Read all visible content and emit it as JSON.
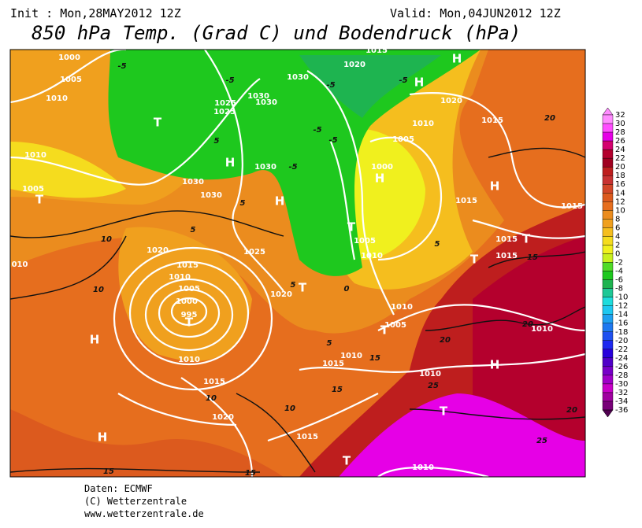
{
  "header": {
    "init": "Init : Mon,28MAY2012 12Z",
    "valid": "Valid: Mon,04JUN2012 12Z",
    "title": "850 hPa Temp. (Grad C) und Bodendruck (hPa)"
  },
  "colorbar": {
    "values": [
      32,
      30,
      28,
      26,
      24,
      22,
      20,
      18,
      16,
      14,
      12,
      10,
      8,
      6,
      4,
      2,
      0,
      -2,
      -4,
      -6,
      -8,
      -10,
      -12,
      -14,
      -16,
      -18,
      -20,
      -22,
      -24,
      -26,
      -28,
      -30,
      -32,
      -34,
      -36
    ],
    "colors": [
      "#ff8cff",
      "#ff4dff",
      "#e600e6",
      "#d4006e",
      "#b4002d",
      "#a00020",
      "#be1e1e",
      "#c83232",
      "#d24628",
      "#dc5a1e",
      "#e66e1e",
      "#eb8c1e",
      "#f0a01e",
      "#f5be1e",
      "#f5dc1e",
      "#f0f01e",
      "#c8f01e",
      "#50dc28",
      "#1ec81e",
      "#1eb450",
      "#1ec896",
      "#1edcdc",
      "#1ec8f0",
      "#1ea0f0",
      "#1e78f0",
      "#1e50f0",
      "#1e28f0",
      "#2800dc",
      "#5000c8",
      "#7800c8",
      "#a000c8",
      "#c800c8",
      "#a000a0",
      "#780078",
      "#500050"
    ]
  },
  "map": {
    "labels": [
      "1000",
      "1005",
      "1010",
      "1010",
      "1005",
      "010",
      "10",
      "10",
      "H",
      "H",
      "15",
      "1020",
      "1015",
      "1010",
      "1005",
      "1000",
      "995",
      "T",
      "1010",
      "1015",
      "10",
      "1020",
      "10",
      "1015",
      "15",
      "1025",
      "1025",
      "1030",
      "1030",
      "1030",
      "1030",
      "1030",
      "1030",
      "1020",
      "1015",
      "H",
      "H",
      "1020",
      "1010",
      "1015",
      "20",
      "1005",
      "1000",
      "H",
      "1015",
      "1015",
      "1015",
      "T",
      "1015",
      "T",
      "15",
      "1025",
      "1020",
      "1005",
      "1010",
      "1010",
      "1005",
      "20",
      "20",
      "1010",
      "H",
      "1015",
      "1010",
      "15",
      "1010",
      "25",
      "15",
      "T",
      "20",
      "25",
      "T",
      "1010",
      "-5",
      "-5",
      "-5",
      "-5",
      "-5",
      "-5",
      "-5",
      "5",
      "5",
      "5",
      "5",
      "5",
      "0",
      "5",
      "H",
      "H",
      "T",
      "T",
      "T",
      "T",
      "T",
      "H"
    ]
  },
  "footer": {
    "source": "Daten: ECMWF",
    "copyright": "(C) Wetterzentrale",
    "url": "www.wetterzentrale.de"
  }
}
